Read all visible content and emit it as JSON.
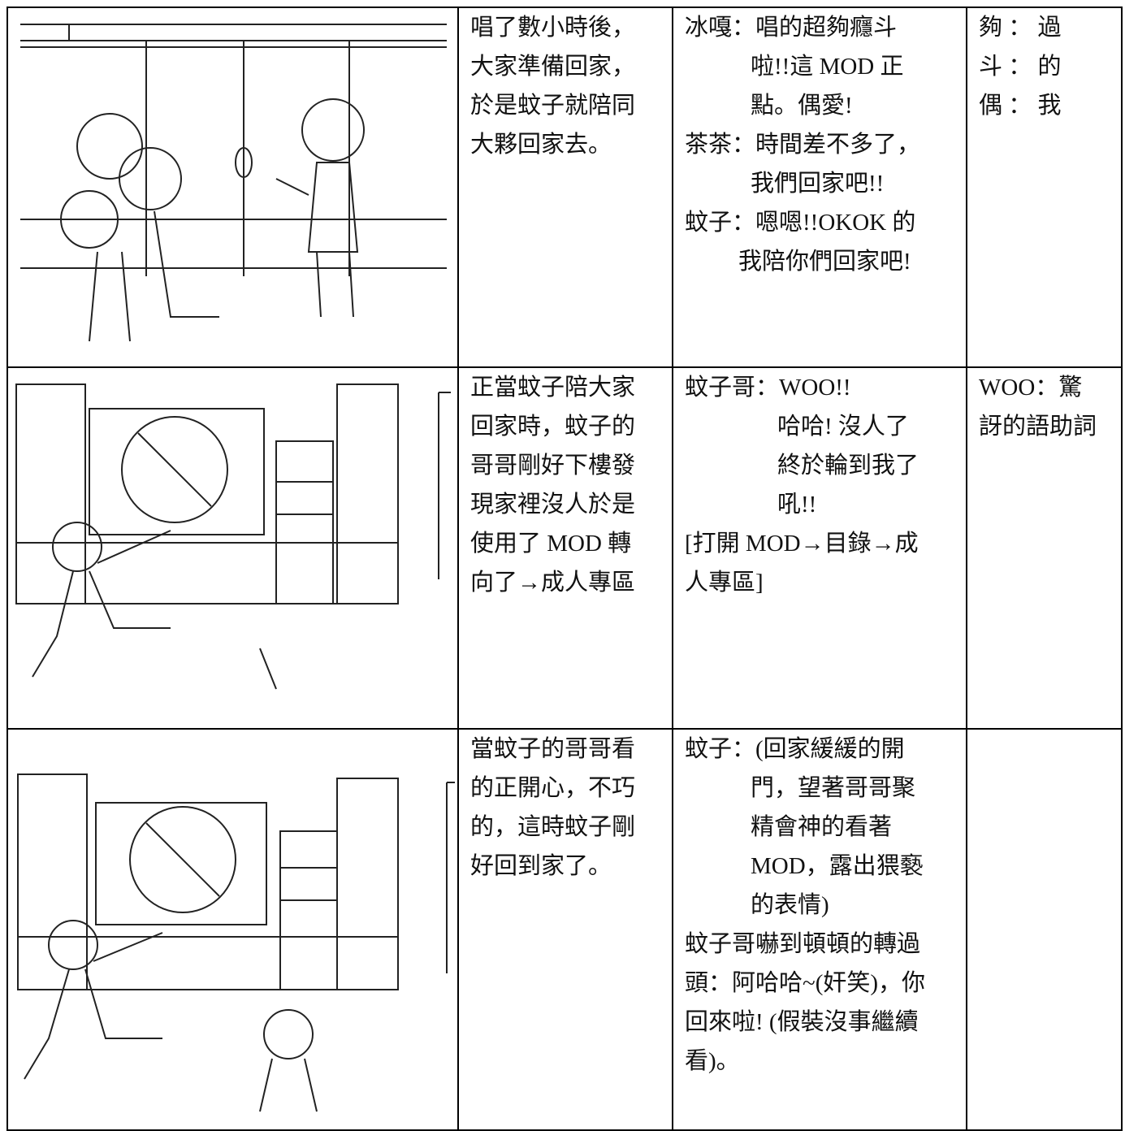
{
  "rows": [
    {
      "narration": [
        "唱了數小時後，",
        "大家準備回家，",
        "於是蚊子就陪同",
        "大夥回家去。"
      ],
      "dialogue": [
        "冰嘎：唱的超夠癮斗",
        "啦!!這 MOD 正",
        "點。偶愛!",
        "茶茶：時間差不多了，",
        "我們回家吧!!",
        "蚊子：嗯嗯!!OKOK 的",
        "我陪你們回家吧!"
      ],
      "notes": [
        "夠 ： 過",
        "斗 ： 的",
        "偶 ： 我"
      ]
    },
    {
      "narration": [
        "正當蚊子陪大家",
        "回家時，蚊子的",
        "哥哥剛好下樓發",
        "現家裡沒人於是",
        "使用了 MOD 轉",
        "向了→成人專區"
      ],
      "dialogue": [
        "蚊子哥：WOO!!",
        "哈哈! 沒人了",
        "終於輪到我了",
        "吼!!",
        "[打開 MOD→目錄→成",
        "人專區]"
      ],
      "notes": [
        "WOO：驚",
        "訝的語助詞"
      ]
    },
    {
      "narration": [
        "當蚊子的哥哥看",
        "的正開心，不巧",
        "的，這時蚊子剛",
        "好回到家了。"
      ],
      "dialogue": [
        "蚊子：(回家緩緩的開",
        "門，望著哥哥聚",
        "精會神的看著",
        "MOD，露出猥褻",
        "的表情)",
        "蚊子哥嚇到頓頓的轉過",
        "頭：阿哈哈~(奸笑)，你",
        "回來啦! (假裝沒事繼續",
        "看)。"
      ],
      "notes": []
    }
  ]
}
